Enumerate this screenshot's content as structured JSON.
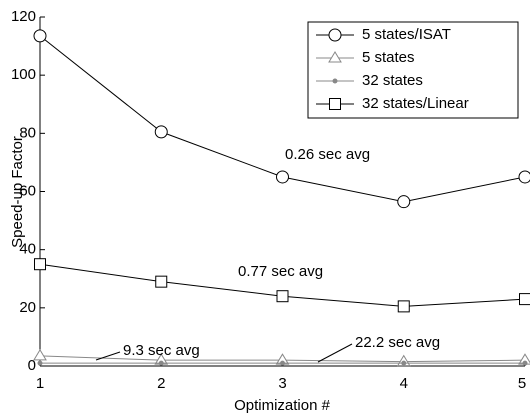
{
  "chart_data": {
    "type": "line",
    "y_label": "Speed-up Factor",
    "x_label": "Optimization #",
    "x": [
      1,
      2,
      3,
      4,
      5
    ],
    "xlim": [
      1,
      5
    ],
    "xticks": [
      1,
      2,
      3,
      4,
      5
    ],
    "ylim": [
      0,
      120
    ],
    "yticks": [
      0,
      20,
      40,
      60,
      80,
      100,
      120
    ],
    "legend": "upper right",
    "series": [
      {
        "name": "5 states/ISAT",
        "color": "#000000",
        "marker": "circle",
        "values": [
          113.5,
          80.5,
          65,
          56.5,
          65
        ]
      },
      {
        "name": "5 states",
        "color": "#888888",
        "marker": "triangle",
        "values": [
          3.5,
          2,
          2,
          1.5,
          2
        ]
      },
      {
        "name": "32 states",
        "color": "#888888",
        "marker": "dot",
        "values": [
          1,
          1,
          1,
          1,
          1
        ]
      },
      {
        "name": "32 states/Linear",
        "color": "#000000",
        "marker": "square",
        "values": [
          35,
          29,
          24,
          20.5,
          23
        ]
      }
    ],
    "annotations": [
      "0.26 sec avg",
      "0.77 sec avg",
      "9.3 sec avg",
      "22.2 sec avg"
    ]
  }
}
